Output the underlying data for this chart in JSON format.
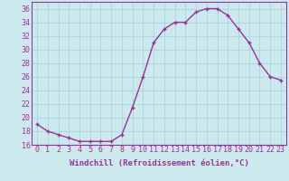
{
  "x": [
    0,
    1,
    2,
    3,
    4,
    5,
    6,
    7,
    8,
    9,
    10,
    11,
    12,
    13,
    14,
    15,
    16,
    17,
    18,
    19,
    20,
    21,
    22,
    23
  ],
  "y": [
    19.0,
    18.0,
    17.5,
    17.0,
    16.5,
    16.5,
    16.5,
    16.5,
    17.5,
    21.5,
    26.0,
    31.0,
    33.0,
    34.0,
    34.0,
    35.5,
    36.0,
    36.0,
    35.0,
    33.0,
    31.0,
    28.0,
    26.0,
    25.5
  ],
  "line_color": "#993399",
  "marker": "+",
  "marker_color": "#993399",
  "bg_color": "#cce9ee",
  "grid_color": "#b0d8de",
  "xlabel": "Windchill (Refroidissement éolien,°C)",
  "xlim": [
    -0.5,
    23.5
  ],
  "ylim": [
    16,
    37
  ],
  "yticks": [
    16,
    18,
    20,
    22,
    24,
    26,
    28,
    30,
    32,
    34,
    36
  ],
  "xticks": [
    0,
    1,
    2,
    3,
    4,
    5,
    6,
    7,
    8,
    9,
    10,
    11,
    12,
    13,
    14,
    15,
    16,
    17,
    18,
    19,
    20,
    21,
    22,
    23
  ],
  "xlabel_fontsize": 6.5,
  "tick_fontsize": 6.0,
  "line_width": 1.0,
  "marker_size": 3.5
}
